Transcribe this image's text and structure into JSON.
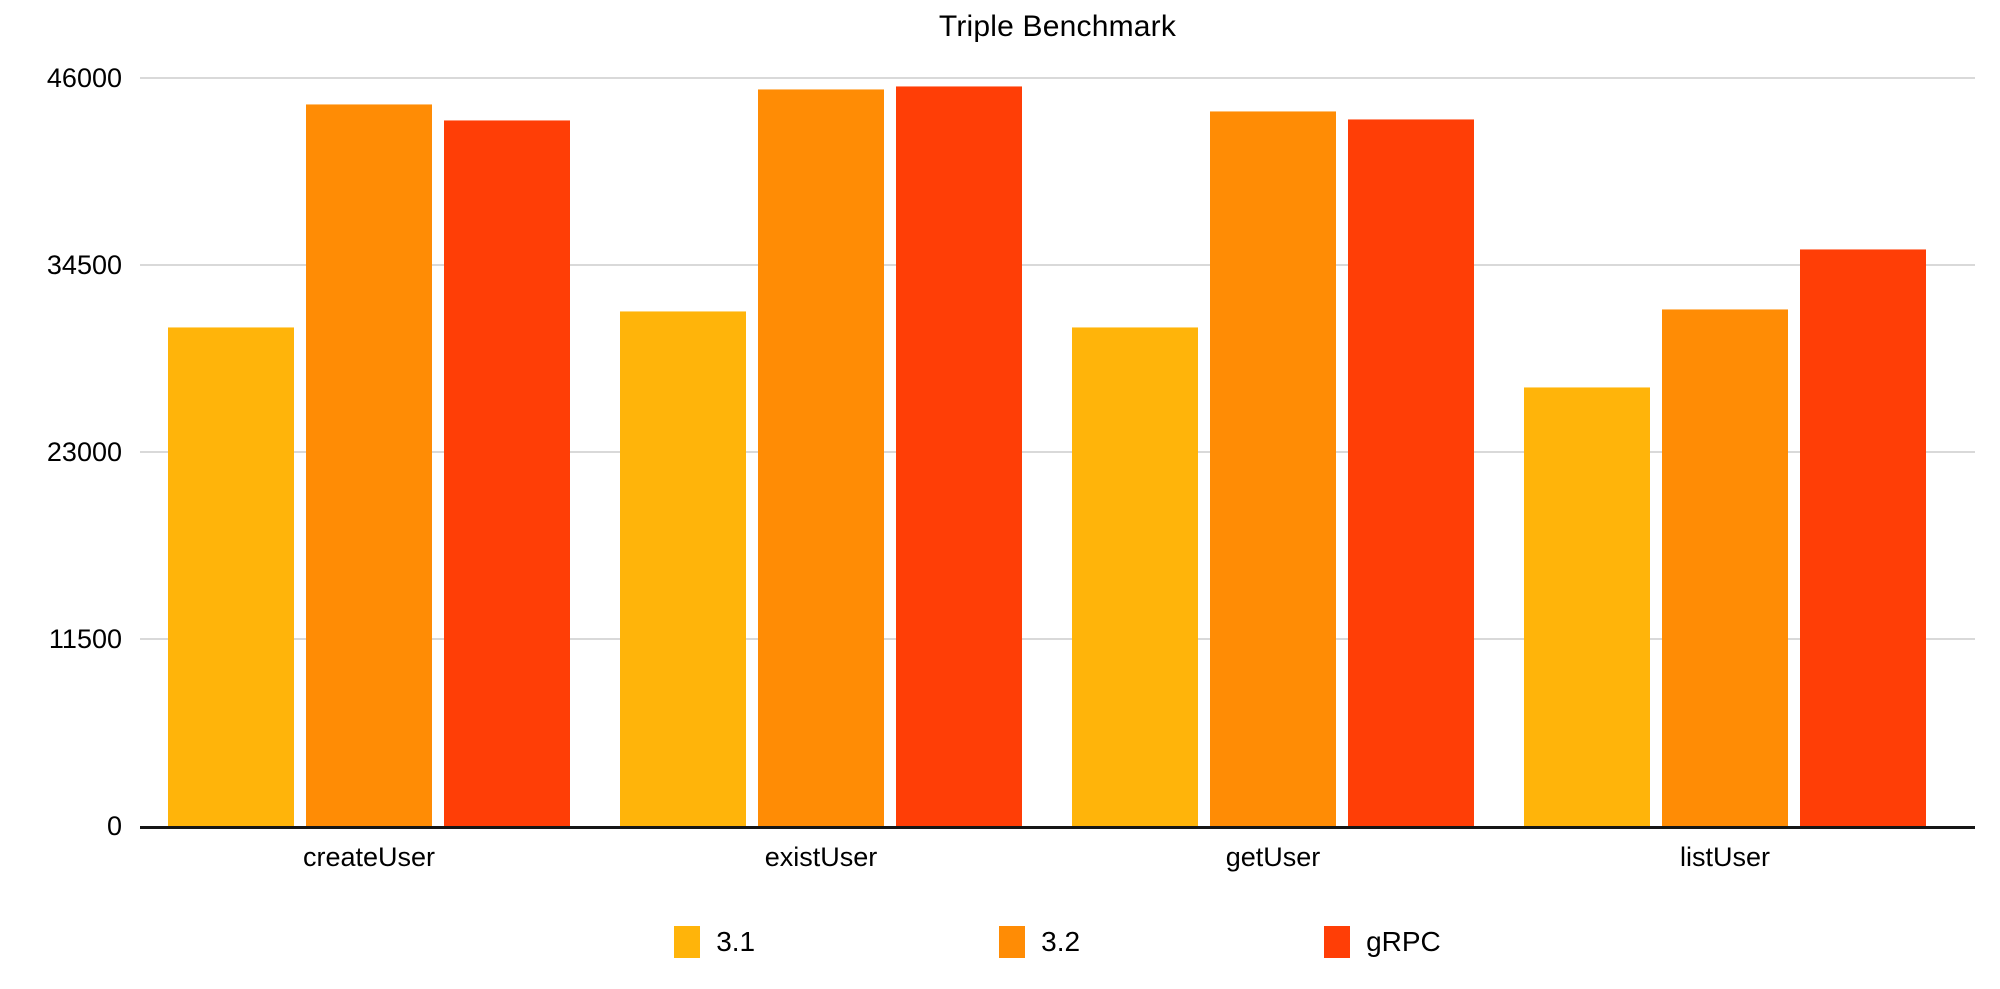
{
  "chart_data": {
    "type": "bar",
    "title": "Triple Benchmark",
    "categories": [
      "createUser",
      "existUser",
      "getUser",
      "listUser"
    ],
    "series": [
      {
        "name": "3.1",
        "color": "#FFB40A",
        "values": [
          30700,
          31700,
          30700,
          27000
        ]
      },
      {
        "name": "3.2",
        "color": "#FF8C05",
        "values": [
          44400,
          45300,
          44000,
          31800
        ]
      },
      {
        "name": "gRPC",
        "color": "#FF3E06",
        "values": [
          43400,
          45500,
          43500,
          35500
        ]
      }
    ],
    "xlabel": "",
    "ylabel": "",
    "ylim": [
      0,
      46000
    ],
    "yticks": [
      {
        "value": 0,
        "label": "0"
      },
      {
        "value": 11500,
        "label": "11500"
      },
      {
        "value": 23000,
        "label": "23000"
      },
      {
        "value": 34500,
        "label": "34500"
      },
      {
        "value": 46000,
        "label": "46000"
      }
    ],
    "grid": true,
    "gridline_color": "#D9D9D9",
    "axis_color": "#161616",
    "legend_position": "bottom"
  }
}
